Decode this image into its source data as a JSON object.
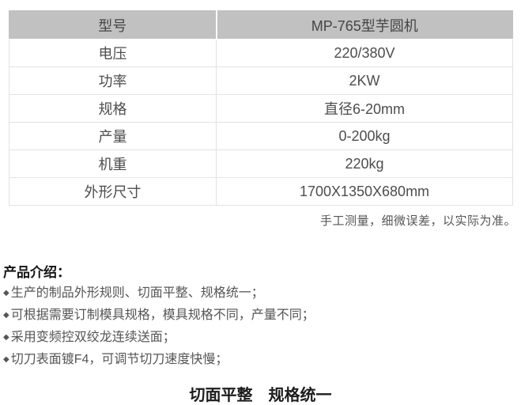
{
  "table": {
    "rows": [
      {
        "label": "型号",
        "value": "MP-765型芋圆机"
      },
      {
        "label": "电压",
        "value": "220/380V"
      },
      {
        "label": "功率",
        "value": "2KW"
      },
      {
        "label": "规格",
        "value": "直径6-20mm"
      },
      {
        "label": "产量",
        "value": "0-200kg"
      },
      {
        "label": "机重",
        "value": "220kg"
      },
      {
        "label": "外形尺寸",
        "value": "1700X1350X680mm"
      }
    ]
  },
  "note": "手工测量，细微误差，以实际为准。",
  "intro": {
    "title": "产品介绍：",
    "bullet_glyph": "◆",
    "bullets": [
      "生产的制品外形规则、切面平整、规格统一；",
      "可根据需要订制模具规格，模具规格不同，产量不同；",
      "采用变频控双绞龙连续送面；",
      "切刀表面镀F4，可调节切刀速度快慢；"
    ]
  },
  "footer_heading": "切面平整　规格统一",
  "colors": {
    "header_bg": "#c1c1c1",
    "border": "#e4e2e2",
    "table_text": "#4d4d4d",
    "body_text": "#555555",
    "heading_text": "#1c1c1c"
  }
}
